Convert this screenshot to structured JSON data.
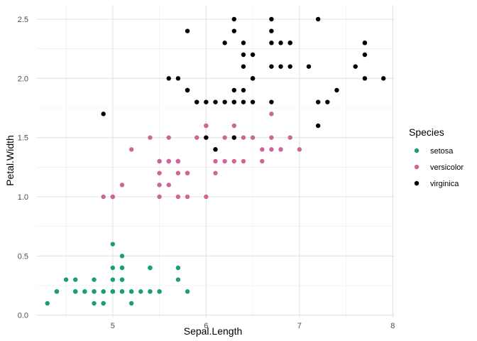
{
  "chart_data": {
    "type": "scatter",
    "xlabel": "Sepal.Length",
    "ylabel": "Petal.Width",
    "xlim": [
      4.18,
      8.02
    ],
    "ylim": [
      -0.02,
      2.62
    ],
    "xticks": [
      5,
      6,
      7,
      8
    ],
    "xtick_labels": [
      "5",
      "6",
      "7",
      "8"
    ],
    "yticks": [
      0.0,
      0.5,
      1.0,
      1.5,
      2.0,
      2.5
    ],
    "ytick_labels": [
      "0.0",
      "0.5",
      "1.0",
      "1.5",
      "2.0",
      "2.5"
    ],
    "grid": true,
    "legend": {
      "title": "Species",
      "placement": "right"
    },
    "series": [
      {
        "name": "setosa",
        "color": "#1b9e77",
        "x": [
          5.1,
          4.9,
          4.7,
          4.6,
          5.0,
          5.4,
          4.6,
          5.0,
          4.4,
          4.9,
          5.4,
          4.8,
          4.8,
          4.3,
          5.8,
          5.7,
          5.4,
          5.1,
          5.7,
          5.1,
          5.4,
          5.1,
          4.6,
          5.1,
          4.8,
          5.0,
          5.0,
          5.2,
          5.2,
          4.7,
          4.8,
          5.4,
          5.2,
          5.5,
          4.9,
          5.0,
          5.5,
          4.9,
          4.4,
          5.1,
          5.0,
          4.5,
          4.4,
          5.0,
          5.1,
          4.8,
          5.1,
          4.6,
          5.3,
          5.0
        ],
        "y": [
          0.2,
          0.2,
          0.2,
          0.2,
          0.2,
          0.4,
          0.3,
          0.2,
          0.2,
          0.1,
          0.2,
          0.2,
          0.1,
          0.1,
          0.2,
          0.4,
          0.4,
          0.3,
          0.3,
          0.3,
          0.2,
          0.4,
          0.2,
          0.5,
          0.2,
          0.2,
          0.4,
          0.2,
          0.2,
          0.2,
          0.2,
          0.4,
          0.1,
          0.2,
          0.2,
          0.2,
          0.2,
          0.1,
          0.2,
          0.2,
          0.3,
          0.3,
          0.2,
          0.6,
          0.4,
          0.3,
          0.2,
          0.2,
          0.2,
          0.2
        ]
      },
      {
        "name": "versicolor",
        "color": "#cc6699",
        "x": [
          7.0,
          6.4,
          6.9,
          5.5,
          6.5,
          5.7,
          6.3,
          4.9,
          6.6,
          5.2,
          5.0,
          5.9,
          6.0,
          6.1,
          5.6,
          6.7,
          5.6,
          5.8,
          6.2,
          5.6,
          5.9,
          6.1,
          6.3,
          6.1,
          6.4,
          6.6,
          6.8,
          6.7,
          6.0,
          5.7,
          5.5,
          5.5,
          5.8,
          6.0,
          5.4,
          6.0,
          6.7,
          6.3,
          5.6,
          5.5,
          5.5,
          6.1,
          5.8,
          5.0,
          5.6,
          5.7,
          5.7,
          6.2,
          5.1,
          5.7
        ],
        "y": [
          1.4,
          1.5,
          1.5,
          1.3,
          1.5,
          1.3,
          1.6,
          1.0,
          1.3,
          1.4,
          1.0,
          1.5,
          1.0,
          1.4,
          1.3,
          1.4,
          1.5,
          1.0,
          1.5,
          1.1,
          1.8,
          1.3,
          1.5,
          1.2,
          1.3,
          1.4,
          1.4,
          1.7,
          1.5,
          1.0,
          1.1,
          1.0,
          1.2,
          1.6,
          1.5,
          1.6,
          1.5,
          1.3,
          1.3,
          1.3,
          1.2,
          1.4,
          1.2,
          1.0,
          1.3,
          1.2,
          1.3,
          1.3,
          1.1,
          1.3
        ]
      },
      {
        "name": "virginica",
        "color": "#000000",
        "x": [
          6.3,
          5.8,
          7.1,
          6.3,
          6.5,
          7.6,
          4.9,
          7.3,
          6.7,
          7.2,
          6.5,
          6.4,
          6.8,
          5.7,
          5.8,
          6.4,
          6.5,
          7.7,
          7.7,
          6.0,
          6.9,
          5.6,
          7.7,
          6.3,
          6.7,
          7.2,
          6.2,
          6.1,
          6.4,
          7.2,
          7.4,
          7.9,
          6.4,
          6.3,
          6.1,
          7.7,
          6.3,
          6.4,
          6.0,
          6.9,
          6.7,
          6.9,
          5.8,
          6.8,
          6.7,
          6.7,
          6.3,
          6.5,
          6.2,
          5.9
        ],
        "y": [
          2.5,
          1.9,
          2.1,
          1.8,
          2.2,
          2.1,
          1.7,
          1.8,
          1.8,
          2.5,
          2.0,
          1.9,
          2.1,
          2.0,
          2.4,
          2.3,
          1.8,
          2.2,
          2.3,
          1.5,
          2.3,
          2.0,
          2.0,
          1.8,
          2.1,
          1.8,
          1.8,
          1.8,
          2.1,
          1.6,
          1.9,
          2.0,
          2.2,
          1.5,
          1.4,
          2.3,
          2.4,
          1.8,
          1.8,
          2.1,
          2.4,
          2.3,
          1.9,
          2.3,
          2.5,
          2.3,
          1.9,
          2.0,
          2.3,
          1.8
        ]
      }
    ]
  }
}
